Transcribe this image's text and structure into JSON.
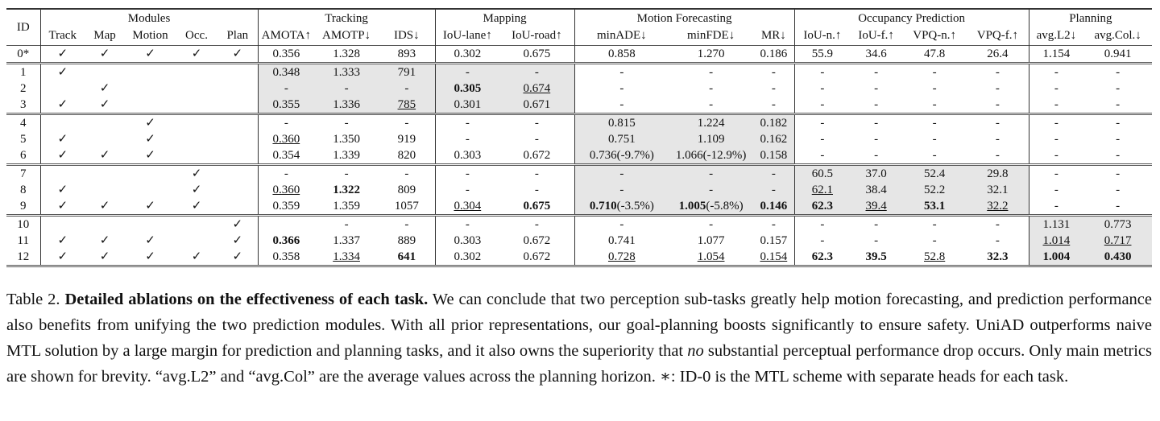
{
  "groups": [
    "ID",
    "Modules",
    "Tracking",
    "Mapping",
    "Motion Forecasting",
    "Occupancy Prediction",
    "Planning"
  ],
  "columns": [
    "Track",
    "Map",
    "Motion",
    "Occ.",
    "Plan",
    "AMOTA↑",
    "AMOTP↓",
    "IDS↓",
    "IoU-lane↑",
    "IoU-road↑",
    "minADE↓",
    "minFDE↓",
    "MR↓",
    "IoU-n.↑",
    "IoU-f.↑",
    "VPQ-n.↑",
    "VPQ-f.↑",
    "avg.L2↓",
    "avg.Col.↓"
  ],
  "check_symbol": "✓",
  "shade_color": "#e6e6e6",
  "rows": [
    {
      "id": "0*",
      "mods": [
        1,
        1,
        1,
        1,
        1
      ],
      "vals": [
        [
          "0.356"
        ],
        [
          "1.328"
        ],
        [
          "893"
        ],
        [
          "0.302"
        ],
        [
          "0.675"
        ],
        [
          "0.858"
        ],
        [
          "1.270"
        ],
        [
          "0.186"
        ],
        [
          "55.9"
        ],
        [
          "34.6"
        ],
        [
          "47.8"
        ],
        [
          "26.4"
        ],
        [
          "1.154"
        ],
        [
          "0.941"
        ]
      ]
    },
    {
      "id": "1",
      "mods": [
        1,
        0,
        0,
        0,
        0
      ],
      "vals": [
        [
          "0.348"
        ],
        [
          "1.333"
        ],
        [
          "791"
        ],
        [
          "-"
        ],
        [
          "-"
        ],
        [
          "-"
        ],
        [
          "-"
        ],
        [
          "-"
        ],
        [
          "-"
        ],
        [
          "-"
        ],
        [
          "-"
        ],
        [
          "-"
        ],
        [
          "-"
        ],
        [
          "-"
        ]
      ]
    },
    {
      "id": "2",
      "mods": [
        0,
        1,
        0,
        0,
        0
      ],
      "vals": [
        [
          "-"
        ],
        [
          "-"
        ],
        [
          "-"
        ],
        [
          "0.305",
          "b"
        ],
        [
          "0.674",
          "u"
        ],
        [
          "-"
        ],
        [
          "-"
        ],
        [
          "-"
        ],
        [
          "-"
        ],
        [
          "-"
        ],
        [
          "-"
        ],
        [
          "-"
        ],
        [
          "-"
        ],
        [
          "-"
        ]
      ]
    },
    {
      "id": "3",
      "mods": [
        1,
        1,
        0,
        0,
        0
      ],
      "vals": [
        [
          "0.355"
        ],
        [
          "1.336"
        ],
        [
          "785",
          "u"
        ],
        [
          "0.301"
        ],
        [
          "0.671"
        ],
        [
          "-"
        ],
        [
          "-"
        ],
        [
          "-"
        ],
        [
          "-"
        ],
        [
          "-"
        ],
        [
          "-"
        ],
        [
          "-"
        ],
        [
          "-"
        ],
        [
          "-"
        ]
      ]
    },
    {
      "id": "4",
      "mods": [
        0,
        0,
        1,
        0,
        0
      ],
      "vals": [
        [
          "-"
        ],
        [
          "-"
        ],
        [
          "-"
        ],
        [
          "-"
        ],
        [
          "-"
        ],
        [
          "0.815"
        ],
        [
          "1.224"
        ],
        [
          "0.182"
        ],
        [
          "-"
        ],
        [
          "-"
        ],
        [
          "-"
        ],
        [
          "-"
        ],
        [
          "-"
        ],
        [
          "-"
        ]
      ]
    },
    {
      "id": "5",
      "mods": [
        1,
        0,
        1,
        0,
        0
      ],
      "vals": [
        [
          "0.360",
          "u"
        ],
        [
          "1.350"
        ],
        [
          "919"
        ],
        [
          "-"
        ],
        [
          "-"
        ],
        [
          "0.751"
        ],
        [
          "1.109"
        ],
        [
          "0.162"
        ],
        [
          "-"
        ],
        [
          "-"
        ],
        [
          "-"
        ],
        [
          "-"
        ],
        [
          "-"
        ],
        [
          "-"
        ]
      ]
    },
    {
      "id": "6",
      "mods": [
        1,
        1,
        1,
        0,
        0
      ],
      "vals": [
        [
          "0.354"
        ],
        [
          "1.339"
        ],
        [
          "820"
        ],
        [
          "0.303"
        ],
        [
          "0.672"
        ],
        [
          "0.736(-9.7%)"
        ],
        [
          "1.066(-12.9%)"
        ],
        [
          "0.158"
        ],
        [
          "-"
        ],
        [
          "-"
        ],
        [
          "-"
        ],
        [
          "-"
        ],
        [
          "-"
        ],
        [
          "-"
        ]
      ]
    },
    {
      "id": "7",
      "mods": [
        0,
        0,
        0,
        1,
        0
      ],
      "vals": [
        [
          "-"
        ],
        [
          "-"
        ],
        [
          "-"
        ],
        [
          "-"
        ],
        [
          "-"
        ],
        [
          "-"
        ],
        [
          "-"
        ],
        [
          "-"
        ],
        [
          "60.5"
        ],
        [
          "37.0"
        ],
        [
          "52.4"
        ],
        [
          "29.8"
        ],
        [
          "-"
        ],
        [
          "-"
        ]
      ]
    },
    {
      "id": "8",
      "mods": [
        1,
        0,
        0,
        1,
        0
      ],
      "vals": [
        [
          "0.360",
          "u"
        ],
        [
          "1.322",
          "b"
        ],
        [
          "809"
        ],
        [
          "-"
        ],
        [
          "-"
        ],
        [
          "-"
        ],
        [
          "-"
        ],
        [
          "-"
        ],
        [
          "62.1",
          "u"
        ],
        [
          "38.4"
        ],
        [
          "52.2"
        ],
        [
          "32.1"
        ],
        [
          "-"
        ],
        [
          "-"
        ]
      ]
    },
    {
      "id": "9",
      "mods": [
        1,
        1,
        1,
        1,
        0
      ],
      "vals": [
        [
          "0.359"
        ],
        [
          "1.359"
        ],
        [
          "1057"
        ],
        [
          "0.304",
          "u"
        ],
        [
          "0.675",
          "b"
        ],
        [
          "0.710",
          "b",
          "(-3.5%)"
        ],
        [
          "1.005",
          "b",
          "(-5.8%)"
        ],
        [
          "0.146",
          "b"
        ],
        [
          "62.3",
          "b"
        ],
        [
          "39.4",
          "u"
        ],
        [
          "53.1",
          "b"
        ],
        [
          "32.2",
          "u"
        ],
        [
          "-"
        ],
        [
          "-"
        ]
      ]
    },
    {
      "id": "10",
      "mods": [
        0,
        0,
        0,
        0,
        1
      ],
      "vals": [
        [
          ""
        ],
        [
          "-"
        ],
        [
          "-"
        ],
        [
          "-"
        ],
        [
          "-"
        ],
        [
          "-"
        ],
        [
          "-"
        ],
        [
          "-"
        ],
        [
          "-"
        ],
        [
          "-"
        ],
        [
          "-"
        ],
        [
          "-"
        ],
        [
          "1.131"
        ],
        [
          "0.773"
        ]
      ]
    },
    {
      "id": "11",
      "mods": [
        1,
        1,
        1,
        0,
        1
      ],
      "vals": [
        [
          "0.366",
          "b"
        ],
        [
          "1.337"
        ],
        [
          "889"
        ],
        [
          "0.303"
        ],
        [
          "0.672"
        ],
        [
          "0.741"
        ],
        [
          "1.077"
        ],
        [
          "0.157"
        ],
        [
          "-"
        ],
        [
          "-"
        ],
        [
          "-"
        ],
        [
          "-"
        ],
        [
          "1.014",
          "u"
        ],
        [
          "0.717",
          "u"
        ]
      ]
    },
    {
      "id": "12",
      "mods": [
        1,
        1,
        1,
        1,
        1
      ],
      "vals": [
        [
          "0.358"
        ],
        [
          "1.334",
          "u"
        ],
        [
          "641",
          "b"
        ],
        [
          "0.302"
        ],
        [
          "0.672"
        ],
        [
          "0.728",
          "u"
        ],
        [
          "1.054",
          "u"
        ],
        [
          "0.154",
          "u"
        ],
        [
          "62.3",
          "b"
        ],
        [
          "39.5",
          "b"
        ],
        [
          "52.8",
          "u"
        ],
        [
          "32.3",
          "b"
        ],
        [
          "1.004",
          "b"
        ],
        [
          "0.430",
          "b"
        ]
      ]
    }
  ],
  "caption": {
    "label": "Table 2.",
    "title": "Detailed ablations on the effectiveness of each task.",
    "text1": " We can conclude that two perception sub-tasks greatly help motion forecasting, and prediction performance also benefits from unifying the two prediction modules. With all prior representations, our goal-planning boosts significantly to ensure safety. UniAD outperforms naive MTL solution by a large margin for prediction and planning tasks, and it also owns the superiority that ",
    "emph": "no",
    "text2": " substantial perceptual performance drop occurs. Only main metrics are shown for brevity. “avg.L2” and “avg.Col” are the average values across the planning horizon. ∗: ID-0 is the MTL scheme with separate heads for each task."
  }
}
